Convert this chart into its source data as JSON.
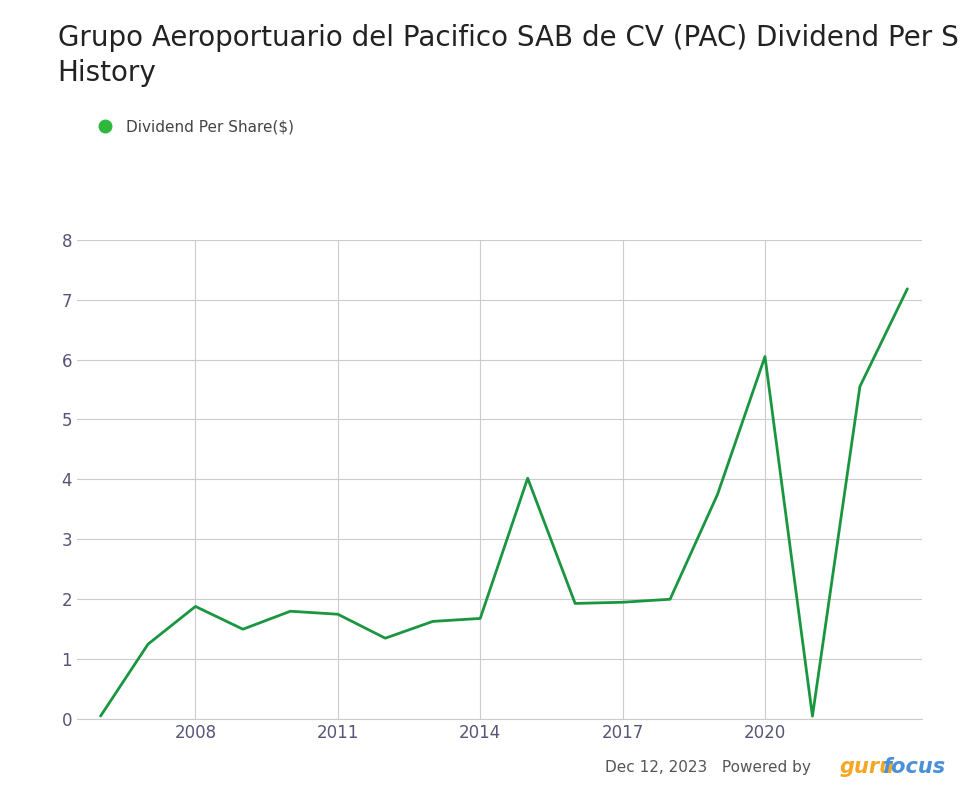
{
  "title": "Grupo Aeroportuario del Pacifico SAB de CV (PAC) Dividend Per Share\nHistory",
  "legend_label": "Dividend Per Share($)",
  "years": [
    2006,
    2007,
    2008,
    2009,
    2010,
    2011,
    2012,
    2013,
    2014,
    2015,
    2016,
    2017,
    2018,
    2019,
    2020,
    2021,
    2022,
    2023
  ],
  "values": [
    0.05,
    1.25,
    1.88,
    1.5,
    1.8,
    1.75,
    1.35,
    1.63,
    1.68,
    4.02,
    1.93,
    1.95,
    2.0,
    3.75,
    6.05,
    0.05,
    5.55,
    7.18
  ],
  "line_color": "#1a9641",
  "dot_color": "#2db83d",
  "ylim": [
    0,
    8
  ],
  "yticks": [
    0,
    1,
    2,
    3,
    4,
    5,
    6,
    7,
    8
  ],
  "xtick_years": [
    2008,
    2011,
    2014,
    2017,
    2020
  ],
  "grid_color": "#cccccc",
  "background_color": "#ffffff",
  "title_fontsize": 20,
  "legend_fontsize": 11,
  "date_text": "Dec 12, 2023",
  "powered_by": "Powered by",
  "brand_color_orange": "#f5a623",
  "brand_color_blue": "#4a90d9",
  "tick_color": "#555577",
  "tick_fontsize": 12
}
